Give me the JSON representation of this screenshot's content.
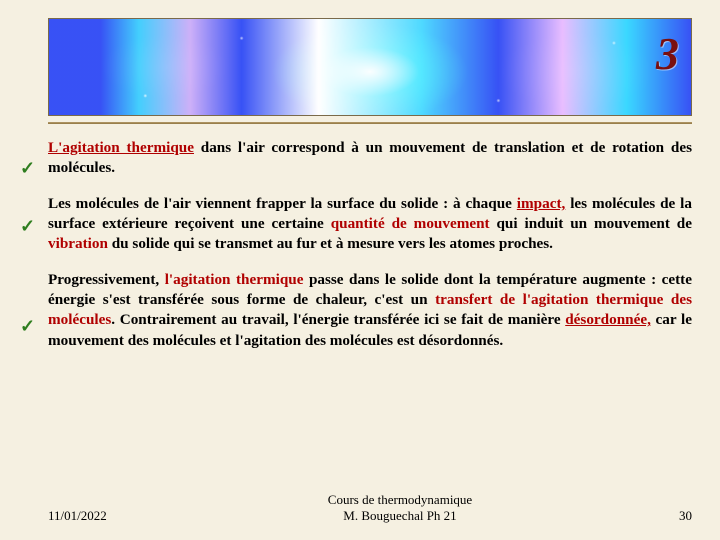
{
  "banner": {
    "slide_number": "3"
  },
  "paragraphs": {
    "p1": {
      "s1a": "L'agitation thermique",
      "s1b": " dans l'air correspond  à un mouvement de translation et de rotation des molécules."
    },
    "p2": {
      "s1": " Les molécules de l'air viennent frapper la surface du solide : à chaque ",
      "s2": "impact,",
      "s3": " les molécules de la surface extérieure reçoivent une certaine ",
      "s4": "quantité de mouvement",
      "s5": " qui induit un mouvement de ",
      "s6": "vibration",
      "s7": " du solide qui se transmet au fur et à mesure vers les atomes proches."
    },
    "p3": {
      "s1": "Progressivement, ",
      "s2": "l'agitation thermique",
      "s3": " passe dans le solide dont la température augmente : cette énergie s'est transférée sous forme de chaleur, c'est un ",
      "s4": "transfert de l'agitation thermique des molécules",
      "s5": ". Contrairement au travail, l'énergie transférée ici se fait de manière ",
      "s6": "désordonnée,",
      "s7": " car le mouvement des molécules et l'agitation des molécules est désordonnés."
    }
  },
  "footer": {
    "date": "11/01/2022",
    "course_line1": "Cours de thermodynamique",
    "course_line2": "M. Bouguechal  Ph 21",
    "page": "30"
  }
}
